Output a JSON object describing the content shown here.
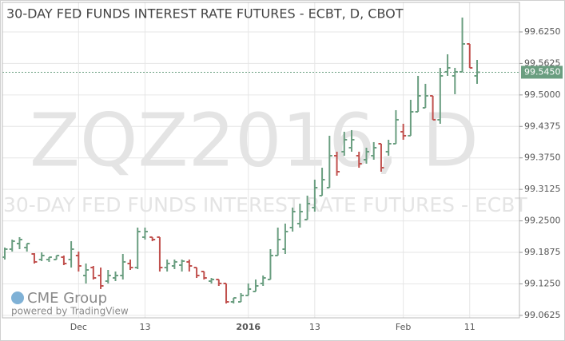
{
  "chart_data": {
    "type": "ohlc",
    "title": "30-DAY FED FUNDS INTEREST RATE FUTURES - ECBT, D, CBOT",
    "watermark_symbol": "ZQZ2016, D",
    "watermark_name": "30-DAY FED FUNDS INTEREST RATE FUTURES - ECBT",
    "logo": "CME Group",
    "logo_subtitle": "powered by TradingView",
    "categories": [
      null,
      null,
      null,
      null,
      null,
      null,
      null,
      null,
      null,
      null,
      "Dec",
      null,
      null,
      null,
      null,
      null,
      null,
      null,
      null,
      "13",
      null,
      null,
      null,
      null,
      null,
      null,
      null,
      null,
      null,
      null,
      null,
      null,
      null,
      "2016",
      null,
      null,
      null,
      null,
      null,
      null,
      null,
      null,
      "13",
      null,
      null,
      null,
      null,
      null,
      null,
      null,
      null,
      null,
      null,
      null,
      "Feb",
      null,
      null,
      null,
      null,
      null,
      null,
      null,
      null,
      "11",
      null
    ],
    "open": [
      99.178,
      99.1939,
      99.205,
      99.1971,
      99.1844,
      99.1733,
      99.1733,
      99.1733,
      99.178,
      99.1733,
      99.1812,
      99.1416,
      99.1574,
      99.1416,
      99.1305,
      99.1368,
      99.1416,
      99.1654,
      99.1574,
      99.2177,
      99.2177,
      99.2177,
      99.1574,
      99.1606,
      99.1622,
      99.1686,
      99.1574,
      99.1495,
      99.1305,
      99.1337,
      99.1258,
      99.0893,
      99.0893,
      99.102,
      99.1099,
      99.1258,
      99.1337,
      99.1812,
      99.1939,
      99.2367,
      99.2446,
      99.2526,
      99.2764,
      99.3001,
      99.3159,
      99.3793,
      99.3873,
      99.3952,
      99.3793,
      99.3714,
      99.3793,
      99.4031,
      99.3873,
      99.4031,
      99.4269,
      99.419,
      99.4665,
      99.4744,
      99.4982,
      99.4507,
      99.5458,
      99.5378,
      99.5458,
      99.6012,
      99.5378
    ],
    "high": [
      99.1971,
      99.2129,
      99.2177,
      99.205,
      99.186,
      99.1876,
      99.178,
      99.1812,
      99.1812,
      99.2097,
      99.1891,
      99.1654,
      99.1606,
      99.1574,
      99.1527,
      99.1495,
      99.1844,
      99.1733,
      99.2367,
      99.2367,
      99.2177,
      99.2177,
      99.1733,
      99.1733,
      99.1733,
      99.1733,
      99.1574,
      99.1495,
      99.1368,
      99.1337,
      99.1258,
      99.0972,
      99.1067,
      99.1258,
      99.1337,
      99.1416,
      99.1939,
      99.2367,
      99.2446,
      99.2764,
      99.2842,
      99.3001,
      99.3318,
      99.3555,
      99.419,
      99.3873,
      99.4269,
      99.4301,
      99.3873,
      99.3952,
      99.4063,
      99.4031,
      99.411,
      99.4697,
      99.4427,
      99.4903,
      99.5378,
      99.522,
      99.4982,
      99.5537,
      99.5806,
      99.5537,
      99.6535,
      99.6012,
      99.5695
    ],
    "low": [
      99.1733,
      99.1891,
      99.1939,
      99.1891,
      99.1654,
      99.1701,
      99.1686,
      99.1733,
      99.1622,
      99.1574,
      99.1495,
      99.1258,
      99.1337,
      99.1147,
      99.1258,
      99.1305,
      99.1337,
      99.1527,
      99.1543,
      99.2129,
      99.2097,
      99.1495,
      99.1495,
      99.1543,
      99.1495,
      99.1495,
      99.1368,
      99.1337,
      99.1258,
      99.121,
      99.0861,
      99.0861,
      99.0893,
      99.102,
      99.1099,
      99.121,
      99.1337,
      99.1812,
      99.1844,
      99.2288,
      99.2367,
      99.2526,
      99.2684,
      99.3001,
      99.3159,
      99.3397,
      99.3793,
      99.3873,
      99.3555,
      99.3635,
      99.3714,
      99.3476,
      99.3793,
      99.4031,
      99.411,
      99.419,
      99.4665,
      99.4744,
      99.4507,
      99.4427,
      99.5378,
      99.5014,
      99.5458,
      99.5537,
      99.522
    ],
    "close": [
      99.1939,
      99.2097,
      99.2129,
      99.205,
      99.1686,
      99.1812,
      99.178,
      99.1812,
      99.1654,
      99.1939,
      99.1606,
      99.1527,
      99.1368,
      99.121,
      99.1416,
      99.1416,
      99.1686,
      99.1574,
      99.2288,
      99.2288,
      99.2129,
      99.1574,
      99.1654,
      99.1686,
      99.1701,
      99.1606,
      99.1416,
      99.1368,
      99.1337,
      99.1258,
      99.0893,
      99.0972,
      99.102,
      99.1147,
      99.121,
      99.1368,
      99.1812,
      99.2129,
      99.2288,
      99.2684,
      99.2684,
      99.2842,
      99.3159,
      99.3318,
      99.3793,
      99.3476,
      99.411,
      99.411,
      99.3635,
      99.3873,
      99.3952,
      99.3555,
      99.4031,
      99.4507,
      99.419,
      99.4665,
      99.4982,
      99.4982,
      99.4507,
      99.5378,
      99.5537,
      99.5458,
      99.6012,
      99.5537,
      99.545
    ],
    "up_color": "#6a9e80",
    "down_color": "#c0504d",
    "last_price": {
      "value": 99.545,
      "label": "99.5450"
    },
    "ylim": [
      99.0576,
      99.6836
    ],
    "yticks": [
      {
        "value": 99.0625,
        "label": "99.0625"
      },
      {
        "value": 99.125,
        "label": "99.1250"
      },
      {
        "value": 99.1875,
        "label": "99.1875"
      },
      {
        "value": 99.25,
        "label": "99.2500"
      },
      {
        "value": 99.3125,
        "label": "99.3125"
      },
      {
        "value": 99.375,
        "label": "99.3750"
      },
      {
        "value": 99.4375,
        "label": "99.4375"
      },
      {
        "value": 99.5,
        "label": "99.5000"
      },
      {
        "value": 99.5625,
        "label": "99.5625"
      },
      {
        "value": 99.625,
        "label": "99.6250"
      }
    ],
    "grid": true
  }
}
